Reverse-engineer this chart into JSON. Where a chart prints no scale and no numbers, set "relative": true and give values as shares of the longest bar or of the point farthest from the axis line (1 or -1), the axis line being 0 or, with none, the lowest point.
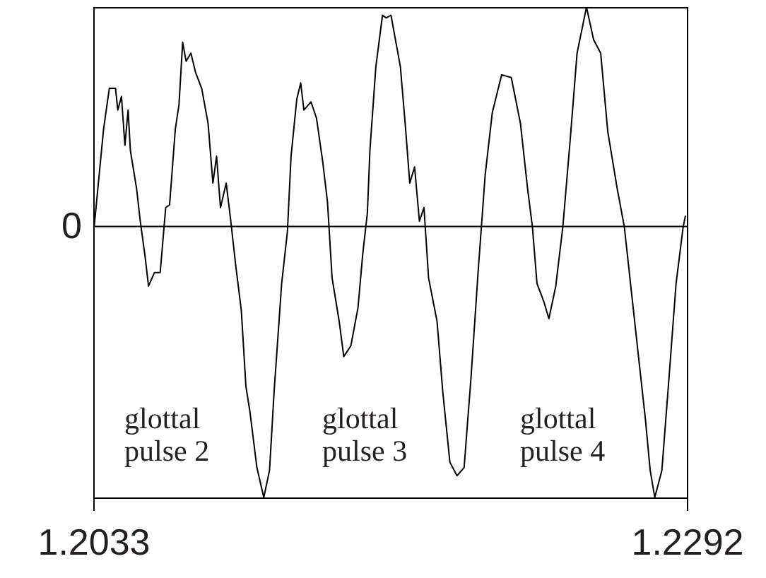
{
  "chart_data": {
    "type": "line",
    "relative": true,
    "xlim": [
      1.2033,
      1.2292
    ],
    "xticks": [
      1.2033,
      1.2292
    ],
    "grid": false,
    "marker": "none",
    "line_style": "solid",
    "tick_labels": "x",
    "ref_lines": [
      {
        "axis": "y",
        "value": 0,
        "label": "0"
      }
    ],
    "annotations": [
      "glottal pulse 2",
      "glottal pulse 3",
      "glottal pulse 4"
    ],
    "series": [
      {
        "color": "#000000",
        "x": [
          1.20334,
          1.20375,
          1.204,
          1.20427,
          1.20437,
          1.20453,
          1.20468,
          1.20482,
          1.20492,
          1.20519,
          1.20535,
          1.20556,
          1.20571,
          1.20597,
          1.20622,
          1.20646,
          1.20663,
          1.20688,
          1.20704,
          1.2072,
          1.20735,
          1.20756,
          1.20776,
          1.20803,
          1.20831,
          1.20852,
          1.20868,
          1.20885,
          1.2091,
          1.2093,
          1.20951,
          1.20976,
          1.20996,
          1.21013,
          1.21044,
          1.21074,
          1.21099,
          1.21119,
          1.21152,
          1.21177,
          1.21193,
          1.21218,
          1.21235,
          1.21249,
          1.2128,
          1.21304,
          1.21331,
          1.21352,
          1.21372,
          1.21403,
          1.21423,
          1.21454,
          1.21485,
          1.21506,
          1.21526,
          1.21537,
          1.21563,
          1.21592,
          1.21608,
          1.21629,
          1.2167,
          1.21691,
          1.21711,
          1.21732,
          1.21753,
          1.21773,
          1.21793,
          1.2183,
          1.21855,
          1.21886,
          1.21917,
          1.21948,
          1.21978,
          1.22009,
          1.2204,
          1.22071,
          1.22112,
          1.22154,
          1.22194,
          1.22225,
          1.22246,
          1.22266,
          1.22297,
          1.22318,
          1.22348,
          1.22379,
          1.2241,
          1.22441,
          1.22482,
          1.22513,
          1.22544,
          1.22575,
          1.22616,
          1.22647,
          1.22678,
          1.22709,
          1.22739,
          1.2276,
          1.2278,
          1.22811,
          1.22842,
          1.22873,
          1.22904,
          1.22914
        ],
        "values": [
          0.0,
          0.36,
          0.51,
          0.51,
          0.43,
          0.48,
          0.3,
          0.43,
          0.28,
          0.14,
          0.02,
          -0.11,
          -0.22,
          -0.17,
          -0.17,
          0.07,
          0.08,
          0.36,
          0.45,
          0.68,
          0.61,
          0.64,
          0.57,
          0.51,
          0.38,
          0.16,
          0.26,
          0.07,
          0.16,
          0.02,
          -0.14,
          -0.31,
          -0.59,
          -0.68,
          -0.89,
          -1.0,
          -0.9,
          -0.61,
          -0.21,
          -0.02,
          0.26,
          0.47,
          0.53,
          0.43,
          0.46,
          0.4,
          0.24,
          0.09,
          -0.19,
          -0.35,
          -0.48,
          -0.44,
          -0.3,
          -0.1,
          0.05,
          0.28,
          0.59,
          0.78,
          0.77,
          0.78,
          0.59,
          0.38,
          0.16,
          0.22,
          0.02,
          0.07,
          -0.19,
          -0.35,
          -0.61,
          -0.87,
          -0.92,
          -0.89,
          -0.56,
          -0.17,
          0.19,
          0.42,
          0.56,
          0.55,
          0.38,
          0.14,
          0.0,
          -0.21,
          -0.28,
          -0.34,
          -0.22,
          0.0,
          0.31,
          0.64,
          0.81,
          0.69,
          0.64,
          0.35,
          0.14,
          0.0,
          -0.24,
          -0.48,
          -0.71,
          -0.9,
          -1.0,
          -0.9,
          -0.56,
          -0.21,
          0.0,
          0.04
        ]
      }
    ]
  }
}
